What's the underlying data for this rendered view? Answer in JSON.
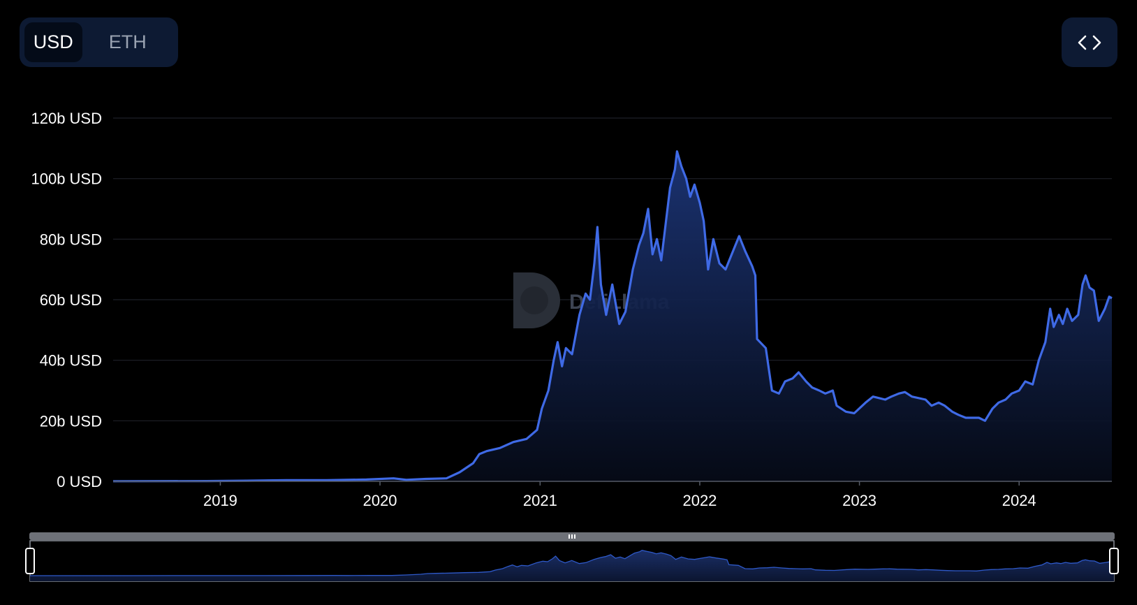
{
  "currency_toggle": {
    "options": [
      {
        "label": "USD",
        "active": true
      },
      {
        "label": "ETH",
        "active": false
      }
    ]
  },
  "embed_button": {
    "icon": "code-brackets-icon"
  },
  "watermark": {
    "text": "DefiLlama"
  },
  "colors": {
    "line": "#3f6ae6",
    "area_top": "#1c3577",
    "background": "#000000",
    "panel": "#0d1a33"
  },
  "chart_data": {
    "type": "area",
    "title": "",
    "xlabel": "",
    "ylabel": "",
    "y_unit": "USD",
    "ylim": [
      0,
      120
    ],
    "xlim": [
      "2018-05-01",
      "2024-07-31"
    ],
    "grid": true,
    "y_ticks": [
      "0 USD",
      "20b USD",
      "40b USD",
      "60b USD",
      "80b USD",
      "100b USD",
      "120b USD"
    ],
    "x_ticks": [
      "2019",
      "2020",
      "2021",
      "2022",
      "2023",
      "2024"
    ],
    "series": [
      {
        "values_in": "billions USD",
        "points": [
          [
            "2018-05-01",
            0.05
          ],
          [
            "2018-12-01",
            0.1
          ],
          [
            "2019-03-01",
            0.2
          ],
          [
            "2019-06-01",
            0.4
          ],
          [
            "2019-09-01",
            0.4
          ],
          [
            "2019-12-01",
            0.6
          ],
          [
            "2020-02-01",
            1.0
          ],
          [
            "2020-03-01",
            0.5
          ],
          [
            "2020-04-15",
            0.8
          ],
          [
            "2020-06-01",
            1.0
          ],
          [
            "2020-07-01",
            3.0
          ],
          [
            "2020-08-01",
            6.0
          ],
          [
            "2020-08-15",
            9.0
          ],
          [
            "2020-09-01",
            10.0
          ],
          [
            "2020-10-01",
            11.0
          ],
          [
            "2020-11-01",
            13.0
          ],
          [
            "2020-12-01",
            14.0
          ],
          [
            "2020-12-25",
            17.0
          ],
          [
            "2021-01-05",
            24.0
          ],
          [
            "2021-01-20",
            30.0
          ],
          [
            "2021-02-01",
            40.0
          ],
          [
            "2021-02-10",
            46.0
          ],
          [
            "2021-02-20",
            38.0
          ],
          [
            "2021-03-01",
            44.0
          ],
          [
            "2021-03-15",
            42.0
          ],
          [
            "2021-04-01",
            55.0
          ],
          [
            "2021-04-15",
            62.0
          ],
          [
            "2021-04-25",
            60.0
          ],
          [
            "2021-05-05",
            72.0
          ],
          [
            "2021-05-12",
            84.0
          ],
          [
            "2021-05-20",
            65.0
          ],
          [
            "2021-06-01",
            55.0
          ],
          [
            "2021-06-15",
            65.0
          ],
          [
            "2021-07-01",
            52.0
          ],
          [
            "2021-07-15",
            56.0
          ],
          [
            "2021-08-01",
            70.0
          ],
          [
            "2021-08-15",
            78.0
          ],
          [
            "2021-08-25",
            82.0
          ],
          [
            "2021-09-05",
            90.0
          ],
          [
            "2021-09-15",
            75.0
          ],
          [
            "2021-09-25",
            80.0
          ],
          [
            "2021-10-05",
            73.0
          ],
          [
            "2021-10-15",
            85.0
          ],
          [
            "2021-10-25",
            97.0
          ],
          [
            "2021-11-05",
            103.0
          ],
          [
            "2021-11-10",
            109.0
          ],
          [
            "2021-11-20",
            104.0
          ],
          [
            "2021-12-01",
            100.0
          ],
          [
            "2021-12-10",
            94.0
          ],
          [
            "2021-12-20",
            98.0
          ],
          [
            "2022-01-01",
            92.0
          ],
          [
            "2022-01-10",
            86.0
          ],
          [
            "2022-01-20",
            70.0
          ],
          [
            "2022-02-01",
            80.0
          ],
          [
            "2022-02-15",
            72.0
          ],
          [
            "2022-03-01",
            70.0
          ],
          [
            "2022-03-15",
            75.0
          ],
          [
            "2022-04-01",
            81.0
          ],
          [
            "2022-04-15",
            76.0
          ],
          [
            "2022-05-01",
            71.0
          ],
          [
            "2022-05-08",
            68.0
          ],
          [
            "2022-05-12",
            47.0
          ],
          [
            "2022-06-01",
            44.0
          ],
          [
            "2022-06-15",
            30.0
          ],
          [
            "2022-07-01",
            29.0
          ],
          [
            "2022-07-15",
            33.0
          ],
          [
            "2022-08-01",
            34.0
          ],
          [
            "2022-08-15",
            36.0
          ],
          [
            "2022-09-01",
            33.0
          ],
          [
            "2022-09-15",
            31.0
          ],
          [
            "2022-10-01",
            30.0
          ],
          [
            "2022-10-15",
            29.0
          ],
          [
            "2022-11-01",
            30.0
          ],
          [
            "2022-11-10",
            25.0
          ],
          [
            "2022-12-01",
            23.0
          ],
          [
            "2022-12-20",
            22.5
          ],
          [
            "2023-01-15",
            26.0
          ],
          [
            "2023-02-01",
            28.0
          ],
          [
            "2023-03-01",
            27.0
          ],
          [
            "2023-03-15",
            28.0
          ],
          [
            "2023-04-01",
            29.0
          ],
          [
            "2023-04-15",
            29.5
          ],
          [
            "2023-05-01",
            28.0
          ],
          [
            "2023-06-01",
            27.0
          ],
          [
            "2023-06-15",
            25.0
          ],
          [
            "2023-07-01",
            26.0
          ],
          [
            "2023-07-15",
            25.0
          ],
          [
            "2023-08-01",
            23.0
          ],
          [
            "2023-08-15",
            22.0
          ],
          [
            "2023-09-01",
            21.0
          ],
          [
            "2023-10-01",
            21.0
          ],
          [
            "2023-10-15",
            20.0
          ],
          [
            "2023-11-01",
            24.0
          ],
          [
            "2023-11-15",
            26.0
          ],
          [
            "2023-12-01",
            27.0
          ],
          [
            "2023-12-15",
            29.0
          ],
          [
            "2024-01-01",
            30.0
          ],
          [
            "2024-01-15",
            33.0
          ],
          [
            "2024-02-01",
            32.0
          ],
          [
            "2024-02-15",
            40.0
          ],
          [
            "2024-03-01",
            46.0
          ],
          [
            "2024-03-12",
            57.0
          ],
          [
            "2024-03-20",
            51.0
          ],
          [
            "2024-04-01",
            55.0
          ],
          [
            "2024-04-10",
            52.0
          ],
          [
            "2024-04-20",
            57.0
          ],
          [
            "2024-05-01",
            53.0
          ],
          [
            "2024-05-15",
            55.0
          ],
          [
            "2024-05-25",
            65.0
          ],
          [
            "2024-06-01",
            68.0
          ],
          [
            "2024-06-10",
            64.0
          ],
          [
            "2024-06-20",
            63.0
          ],
          [
            "2024-07-01",
            53.0
          ],
          [
            "2024-07-15",
            57.0
          ],
          [
            "2024-07-25",
            61.0
          ],
          [
            "2024-07-31",
            60.5
          ]
        ]
      }
    ],
    "range_slider": {
      "start": "2018-05-01",
      "end": "2024-07-31"
    }
  }
}
